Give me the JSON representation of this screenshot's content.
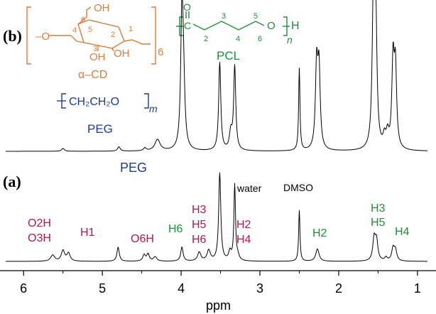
{
  "chart_data": {
    "type": "line",
    "xlabel": "ppm",
    "xlim": [
      6.2,
      0.9
    ],
    "x_reversed": true,
    "x_ticks": [
      6,
      5,
      4,
      3,
      2,
      1
    ],
    "grid": false,
    "panels": [
      {
        "label": "(b)",
        "baseline": 0,
        "peaks": [
          {
            "ppm": 5.5,
            "height": 0.02,
            "width": 0.02
          },
          {
            "ppm": 4.79,
            "height": 0.03,
            "width": 0.02
          },
          {
            "ppm": 4.46,
            "height": 0.02,
            "width": 0.02
          },
          {
            "ppm": 4.3,
            "height": 0.08,
            "width": 0.04
          },
          {
            "ppm": 3.99,
            "height": 0.93,
            "width": 0.018
          },
          {
            "ppm": 3.97,
            "height": 0.4,
            "width": 0.02
          },
          {
            "ppm": 3.51,
            "height": 0.62,
            "width": 0.016
          },
          {
            "ppm": 3.37,
            "height": 0.12,
            "width": 0.02
          },
          {
            "ppm": 3.32,
            "height": 0.59,
            "width": 0.016
          },
          {
            "ppm": 2.5,
            "height": 0.58,
            "width": 0.01
          },
          {
            "ppm": 2.28,
            "height": 0.58,
            "width": 0.018
          },
          {
            "ppm": 2.25,
            "height": 0.55,
            "width": 0.018
          },
          {
            "ppm": 1.56,
            "height": 1.0,
            "width": 0.018
          },
          {
            "ppm": 1.53,
            "height": 0.9,
            "width": 0.018
          },
          {
            "ppm": 1.42,
            "height": 0.08,
            "width": 0.02
          },
          {
            "ppm": 1.38,
            "height": 0.1,
            "width": 0.02
          },
          {
            "ppm": 1.31,
            "height": 0.6,
            "width": 0.018
          },
          {
            "ppm": 1.28,
            "height": 0.55,
            "width": 0.018
          }
        ]
      },
      {
        "label": "(a)",
        "baseline": 0,
        "peaks": [
          {
            "ppm": 5.63,
            "height": 0.07,
            "width": 0.03
          },
          {
            "ppm": 5.5,
            "height": 0.12,
            "width": 0.025
          },
          {
            "ppm": 5.43,
            "height": 0.09,
            "width": 0.025
          },
          {
            "ppm": 4.8,
            "height": 0.16,
            "width": 0.018
          },
          {
            "ppm": 4.47,
            "height": 0.07,
            "width": 0.02
          },
          {
            "ppm": 4.42,
            "height": 0.08,
            "width": 0.02
          },
          {
            "ppm": 4.33,
            "height": 0.05,
            "width": 0.025
          },
          {
            "ppm": 3.99,
            "height": 0.16,
            "width": 0.018
          },
          {
            "ppm": 3.77,
            "height": 0.1,
            "width": 0.025
          },
          {
            "ppm": 3.65,
            "height": 0.12,
            "width": 0.025
          },
          {
            "ppm": 3.51,
            "height": 1.0,
            "width": 0.016
          },
          {
            "ppm": 3.38,
            "height": 0.1,
            "width": 0.02
          },
          {
            "ppm": 3.32,
            "height": 0.86,
            "width": 0.012
          },
          {
            "ppm": 3.28,
            "height": 0.05,
            "width": 0.02
          },
          {
            "ppm": 2.5,
            "height": 0.58,
            "width": 0.01
          },
          {
            "ppm": 2.27,
            "height": 0.14,
            "width": 0.025
          },
          {
            "ppm": 1.55,
            "height": 0.25,
            "width": 0.02
          },
          {
            "ppm": 1.52,
            "height": 0.22,
            "width": 0.02
          },
          {
            "ppm": 1.4,
            "height": 0.04,
            "width": 0.02
          },
          {
            "ppm": 1.31,
            "height": 0.14,
            "width": 0.02
          },
          {
            "ppm": 1.28,
            "height": 0.12,
            "width": 0.02
          }
        ]
      }
    ],
    "annotations": [
      {
        "text": "PEG",
        "color": "#1a3a9c"
      },
      {
        "text": "water",
        "color": "#000000"
      },
      {
        "text": "DMSO",
        "color": "#000000"
      },
      {
        "text": "O2H",
        "color": "#b0184f"
      },
      {
        "text": "O3H",
        "color": "#b0184f"
      },
      {
        "text": "H1",
        "color": "#b0184f"
      },
      {
        "text": "O6H",
        "color": "#b0184f"
      },
      {
        "text": "H6",
        "color": "#1e8f3a"
      },
      {
        "text": "H3",
        "color": "#b0184f"
      },
      {
        "text": "H5",
        "color": "#b0184f"
      },
      {
        "text": "H6",
        "color": "#b0184f"
      },
      {
        "text": "H2",
        "color": "#b0184f"
      },
      {
        "text": "H4",
        "color": "#b0184f"
      },
      {
        "text": "H2",
        "color": "#1e8f3a"
      },
      {
        "text": "H3",
        "color": "#1e8f3a"
      },
      {
        "text": "H5",
        "color": "#1e8f3a"
      },
      {
        "text": "H4",
        "color": "#1e8f3a"
      }
    ]
  },
  "structures": {
    "cd": {
      "name": "α–CD",
      "color": "#e07b3c",
      "oh_top": "OH",
      "oh_left": "OH",
      "oh_right": "OH",
      "o_left": "–O",
      "subscript": "6",
      "atom_labels": [
        "6",
        "5",
        "4",
        "3",
        "2",
        "1"
      ]
    },
    "pcl": {
      "name": "PCL",
      "color": "#1e8f3a",
      "carbonyl_o": "O",
      "carbonyl_c": "C",
      "chain_o": "O",
      "end_h": "H",
      "subscript": "n",
      "atom_labels": [
        "2",
        "3",
        "4",
        "5",
        "6"
      ]
    },
    "peg": {
      "name": "PEG",
      "color": "#1a3a9c",
      "formula": "CH₂CH₂O",
      "subscript": "m"
    }
  },
  "panel_labels": {
    "b": "(b)",
    "a": "(a)"
  }
}
